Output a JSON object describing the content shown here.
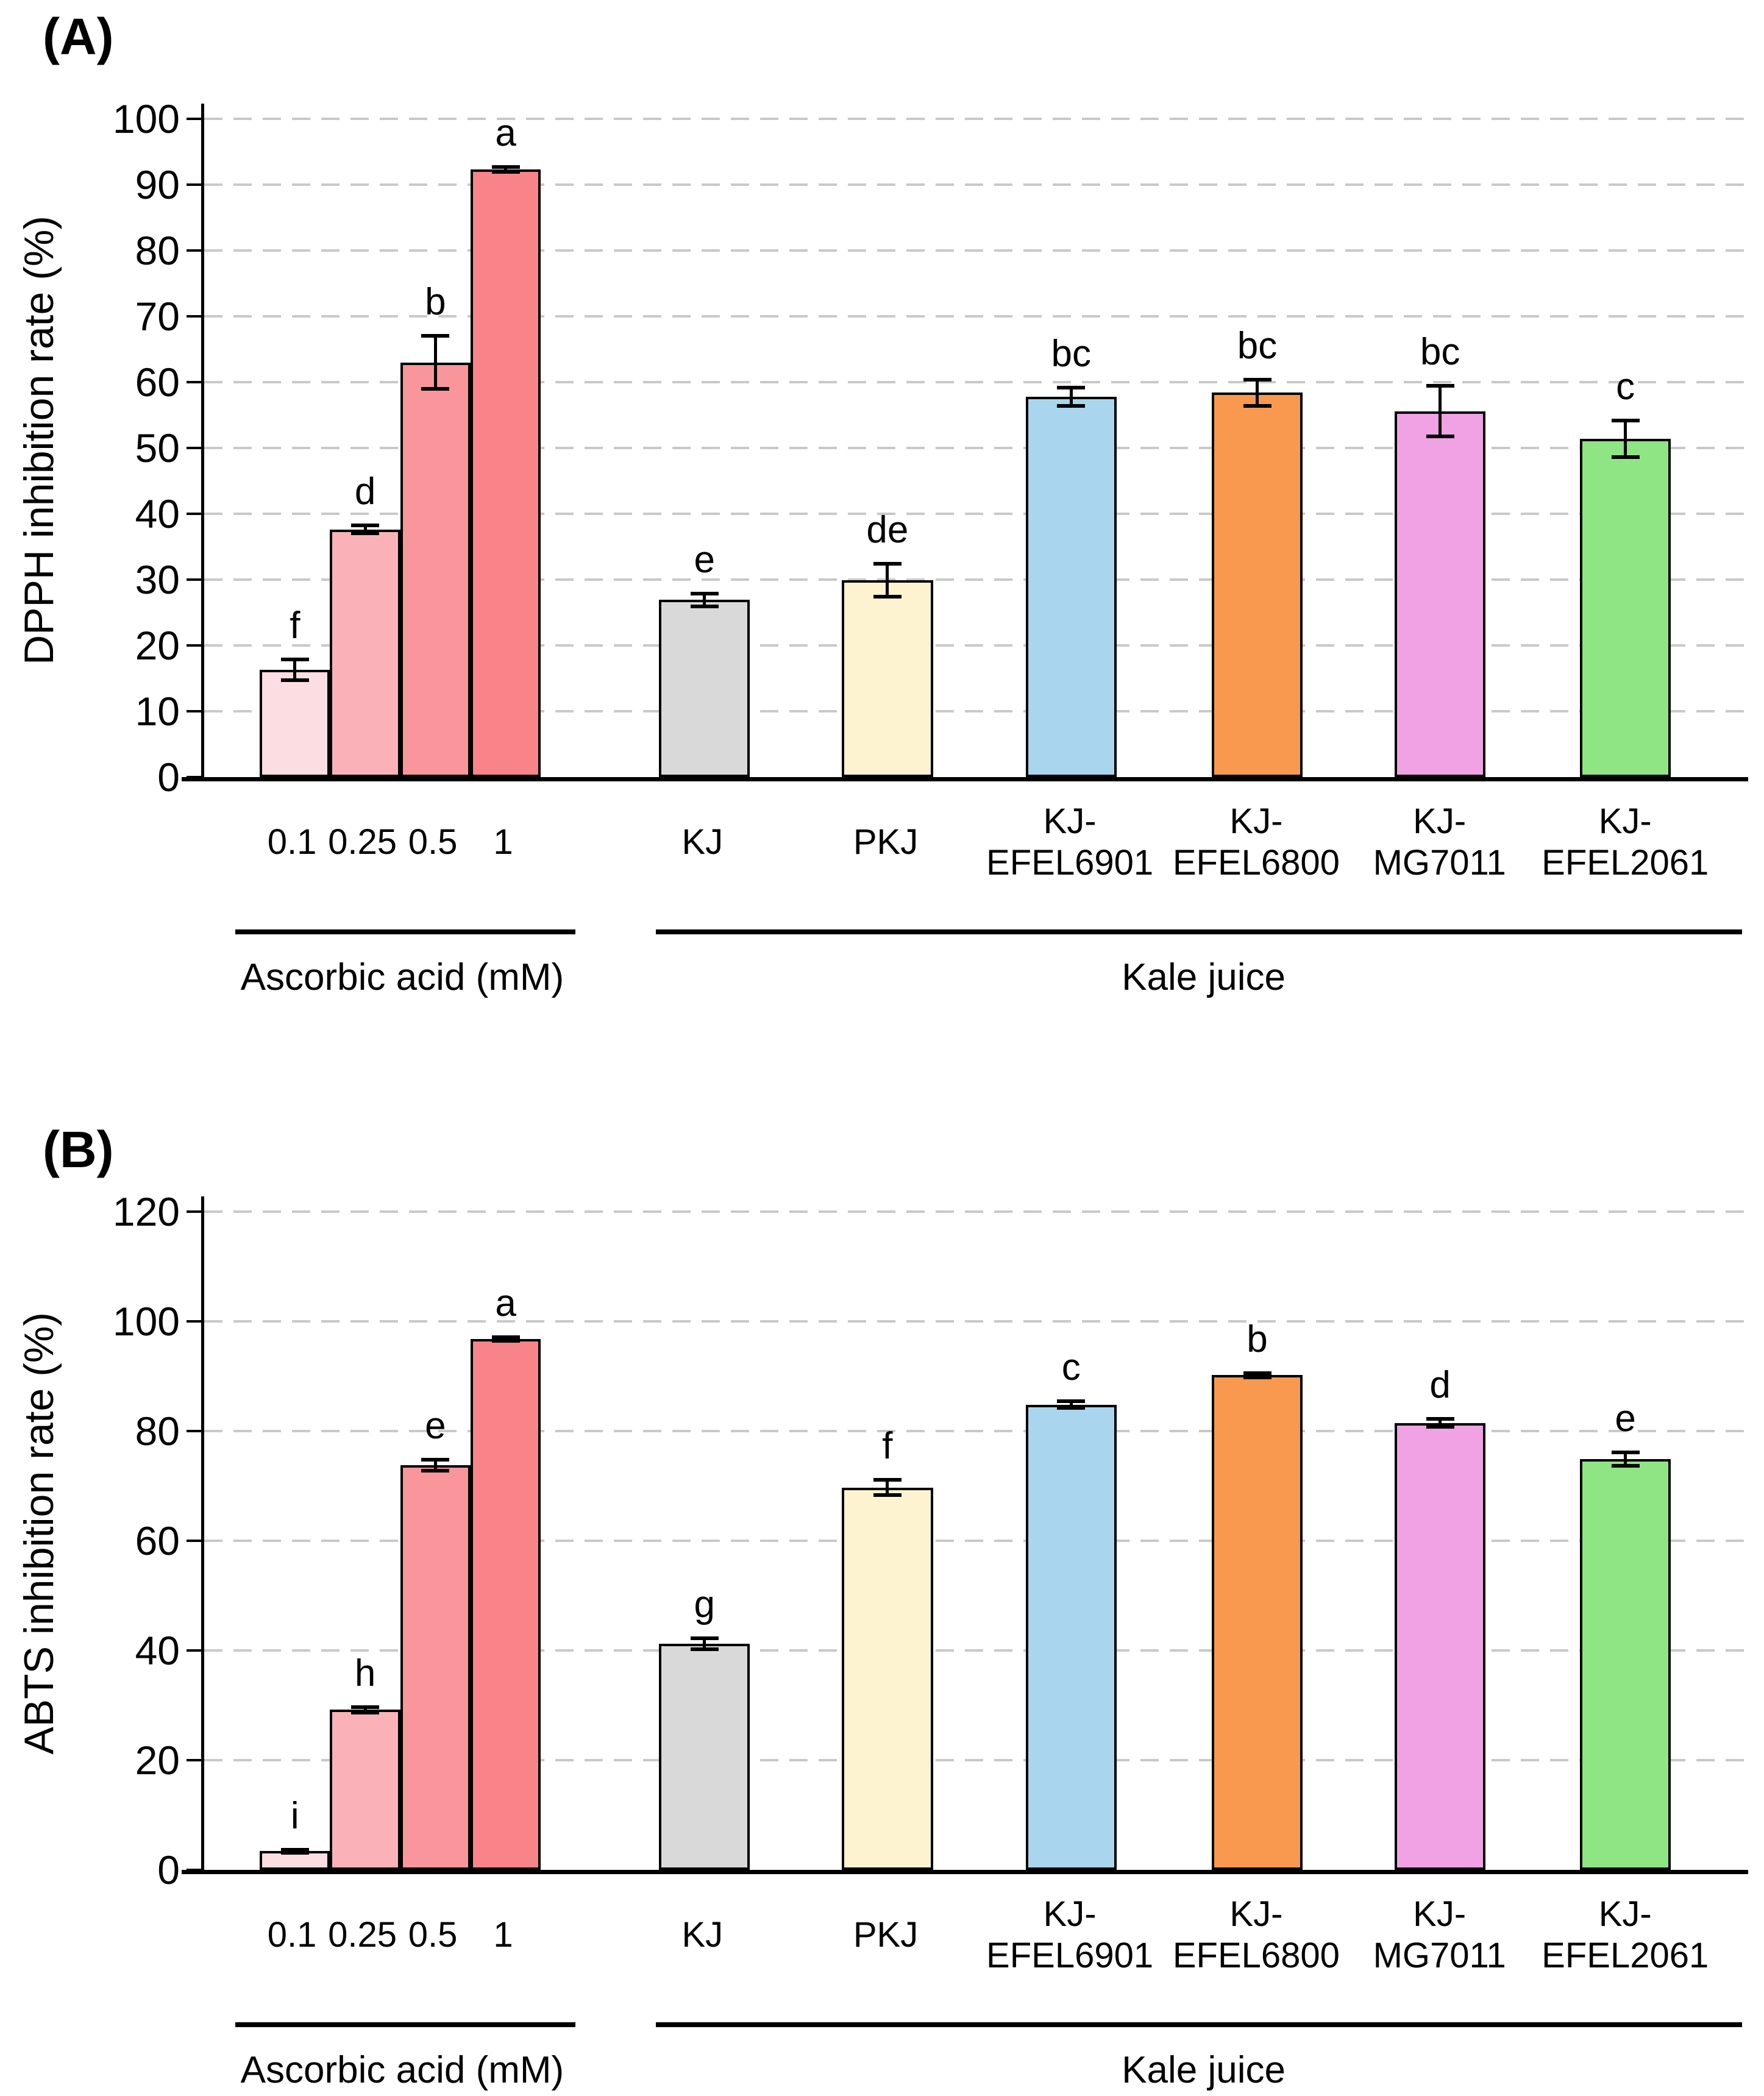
{
  "figure": {
    "background": "#ffffff",
    "axis_color": "#000000",
    "gridline_color": "#c9c9c9",
    "error_bar_color": "#000000"
  },
  "chart_data": [
    {
      "type": "bar",
      "panel_label": "(A)",
      "title": "",
      "xlabel": "",
      "ylabel": "DPPH inhibition rate (%)",
      "ylim": [
        0,
        100
      ],
      "ytick_step": 10,
      "ytick_labels": [
        "0",
        "10",
        "20",
        "30",
        "40",
        "50",
        "60",
        "70",
        "80",
        "90",
        "100"
      ],
      "grid": {
        "style": "dashed",
        "orientation": "horizontal",
        "color": "#c9c9c9"
      },
      "legend_position": "none",
      "categories": [
        "0.1",
        "0.25",
        "0.5",
        "1",
        "KJ",
        "PKJ",
        "KJ-\nEFEL6901",
        "KJ-\nEFEL6800",
        "KJ-\nMG7011",
        "KJ-\nEFEL2061"
      ],
      "values": [
        16.3,
        37.6,
        63.0,
        92.3,
        26.9,
        29.9,
        57.8,
        58.4,
        55.6,
        51.4
      ],
      "errors": [
        1.6,
        0.6,
        4.0,
        0.4,
        1.0,
        2.5,
        1.4,
        2.0,
        3.8,
        2.8
      ],
      "sig_letters": [
        "f",
        "d",
        "b",
        "a",
        "e",
        "de",
        "bc",
        "bc",
        "bc",
        "c"
      ],
      "bar_colors": [
        "#fcdee2",
        "#fab2b8",
        "#f9969c",
        "#f8848a",
        "#d9d9d9",
        "#fdf3d0",
        "#a9d6ee",
        "#f8994f",
        "#f0a2e4",
        "#8fe583"
      ],
      "groups": [
        {
          "label": "Ascorbic acid (mM)",
          "category_indexes": [
            0,
            1,
            2,
            3
          ]
        },
        {
          "label": "Kale juice",
          "category_indexes": [
            4,
            5,
            6,
            7,
            8,
            9
          ]
        }
      ]
    },
    {
      "type": "bar",
      "panel_label": "(B)",
      "title": "",
      "xlabel": "",
      "ylabel": "ABTS inhibition rate (%)",
      "ylim": [
        0,
        120
      ],
      "ytick_step": 20,
      "ytick_labels": [
        "0",
        "20",
        "40",
        "60",
        "80",
        "100",
        "120"
      ],
      "grid": {
        "style": "dashed",
        "orientation": "horizontal",
        "color": "#c9c9c9"
      },
      "legend_position": "none",
      "categories": [
        "0.1",
        "0.25",
        "0.5",
        "1",
        "KJ",
        "PKJ",
        "KJ-\nEFEL6901",
        "KJ-\nEFEL6800",
        "KJ-\nMG7011",
        "KJ-\nEFEL2061"
      ],
      "values": [
        3.4,
        29.2,
        73.8,
        96.8,
        41.2,
        69.7,
        84.8,
        90.2,
        81.5,
        74.9
      ],
      "errors": [
        0.3,
        0.5,
        1.0,
        0.3,
        1.0,
        1.4,
        0.6,
        0.4,
        0.7,
        1.2
      ],
      "sig_letters": [
        "i",
        "h",
        "e",
        "a",
        "g",
        "f",
        "c",
        "b",
        "d",
        "e"
      ],
      "bar_colors": [
        "#fcdee2",
        "#fab2b8",
        "#f9969c",
        "#f8848a",
        "#d9d9d9",
        "#fdf3d0",
        "#a9d6ee",
        "#f8994f",
        "#f0a2e4",
        "#8fe583"
      ],
      "groups": [
        {
          "label": "Ascorbic acid (mM)",
          "category_indexes": [
            0,
            1,
            2,
            3
          ]
        },
        {
          "label": "Kale juice",
          "category_indexes": [
            4,
            5,
            6,
            7,
            8,
            9
          ]
        }
      ]
    }
  ]
}
